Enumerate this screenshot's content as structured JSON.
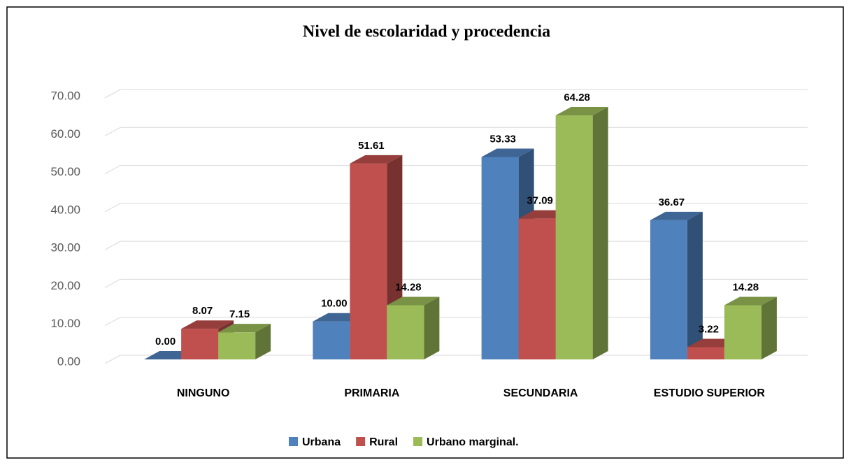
{
  "chart_data": {
    "type": "bar3d",
    "title": "Nivel de escolaridad y procedencia",
    "categories": [
      "NINGUNO",
      "PRIMARIA",
      "SECUNDARIA",
      "ESTUDIO SUPERIOR"
    ],
    "series": [
      {
        "name": "Urbana",
        "color": "#4f81bd",
        "values": [
          0,
          10,
          53.33,
          36.67
        ],
        "value_labels": [
          "0.00",
          "10.00",
          "53.33",
          "36.67"
        ]
      },
      {
        "name": "Rural",
        "color": "#c0504d",
        "values": [
          8.07,
          51.61,
          37.09,
          3.22
        ],
        "value_labels": [
          "8.07",
          "51.61",
          "37.09",
          "3.22"
        ]
      },
      {
        "name": "Urbano marginal.",
        "color": "#9bbb59",
        "values": [
          7.15,
          14.28,
          64.28,
          14.28
        ],
        "value_labels": [
          "7.15",
          "14.28",
          "64.28",
          "14.28"
        ]
      }
    ],
    "ylim": [
      0,
      70
    ],
    "yticks": [
      {
        "value": 0,
        "label": "0.00"
      },
      {
        "value": 10,
        "label": "10.00"
      },
      {
        "value": 20,
        "label": "20.00"
      },
      {
        "value": 30,
        "label": "30.00"
      },
      {
        "value": 40,
        "label": "40.00"
      },
      {
        "value": 50,
        "label": "50.00"
      },
      {
        "value": 60,
        "label": "60.00"
      },
      {
        "value": 70,
        "label": "70.00"
      }
    ],
    "grid": true,
    "legend": "bottom"
  }
}
